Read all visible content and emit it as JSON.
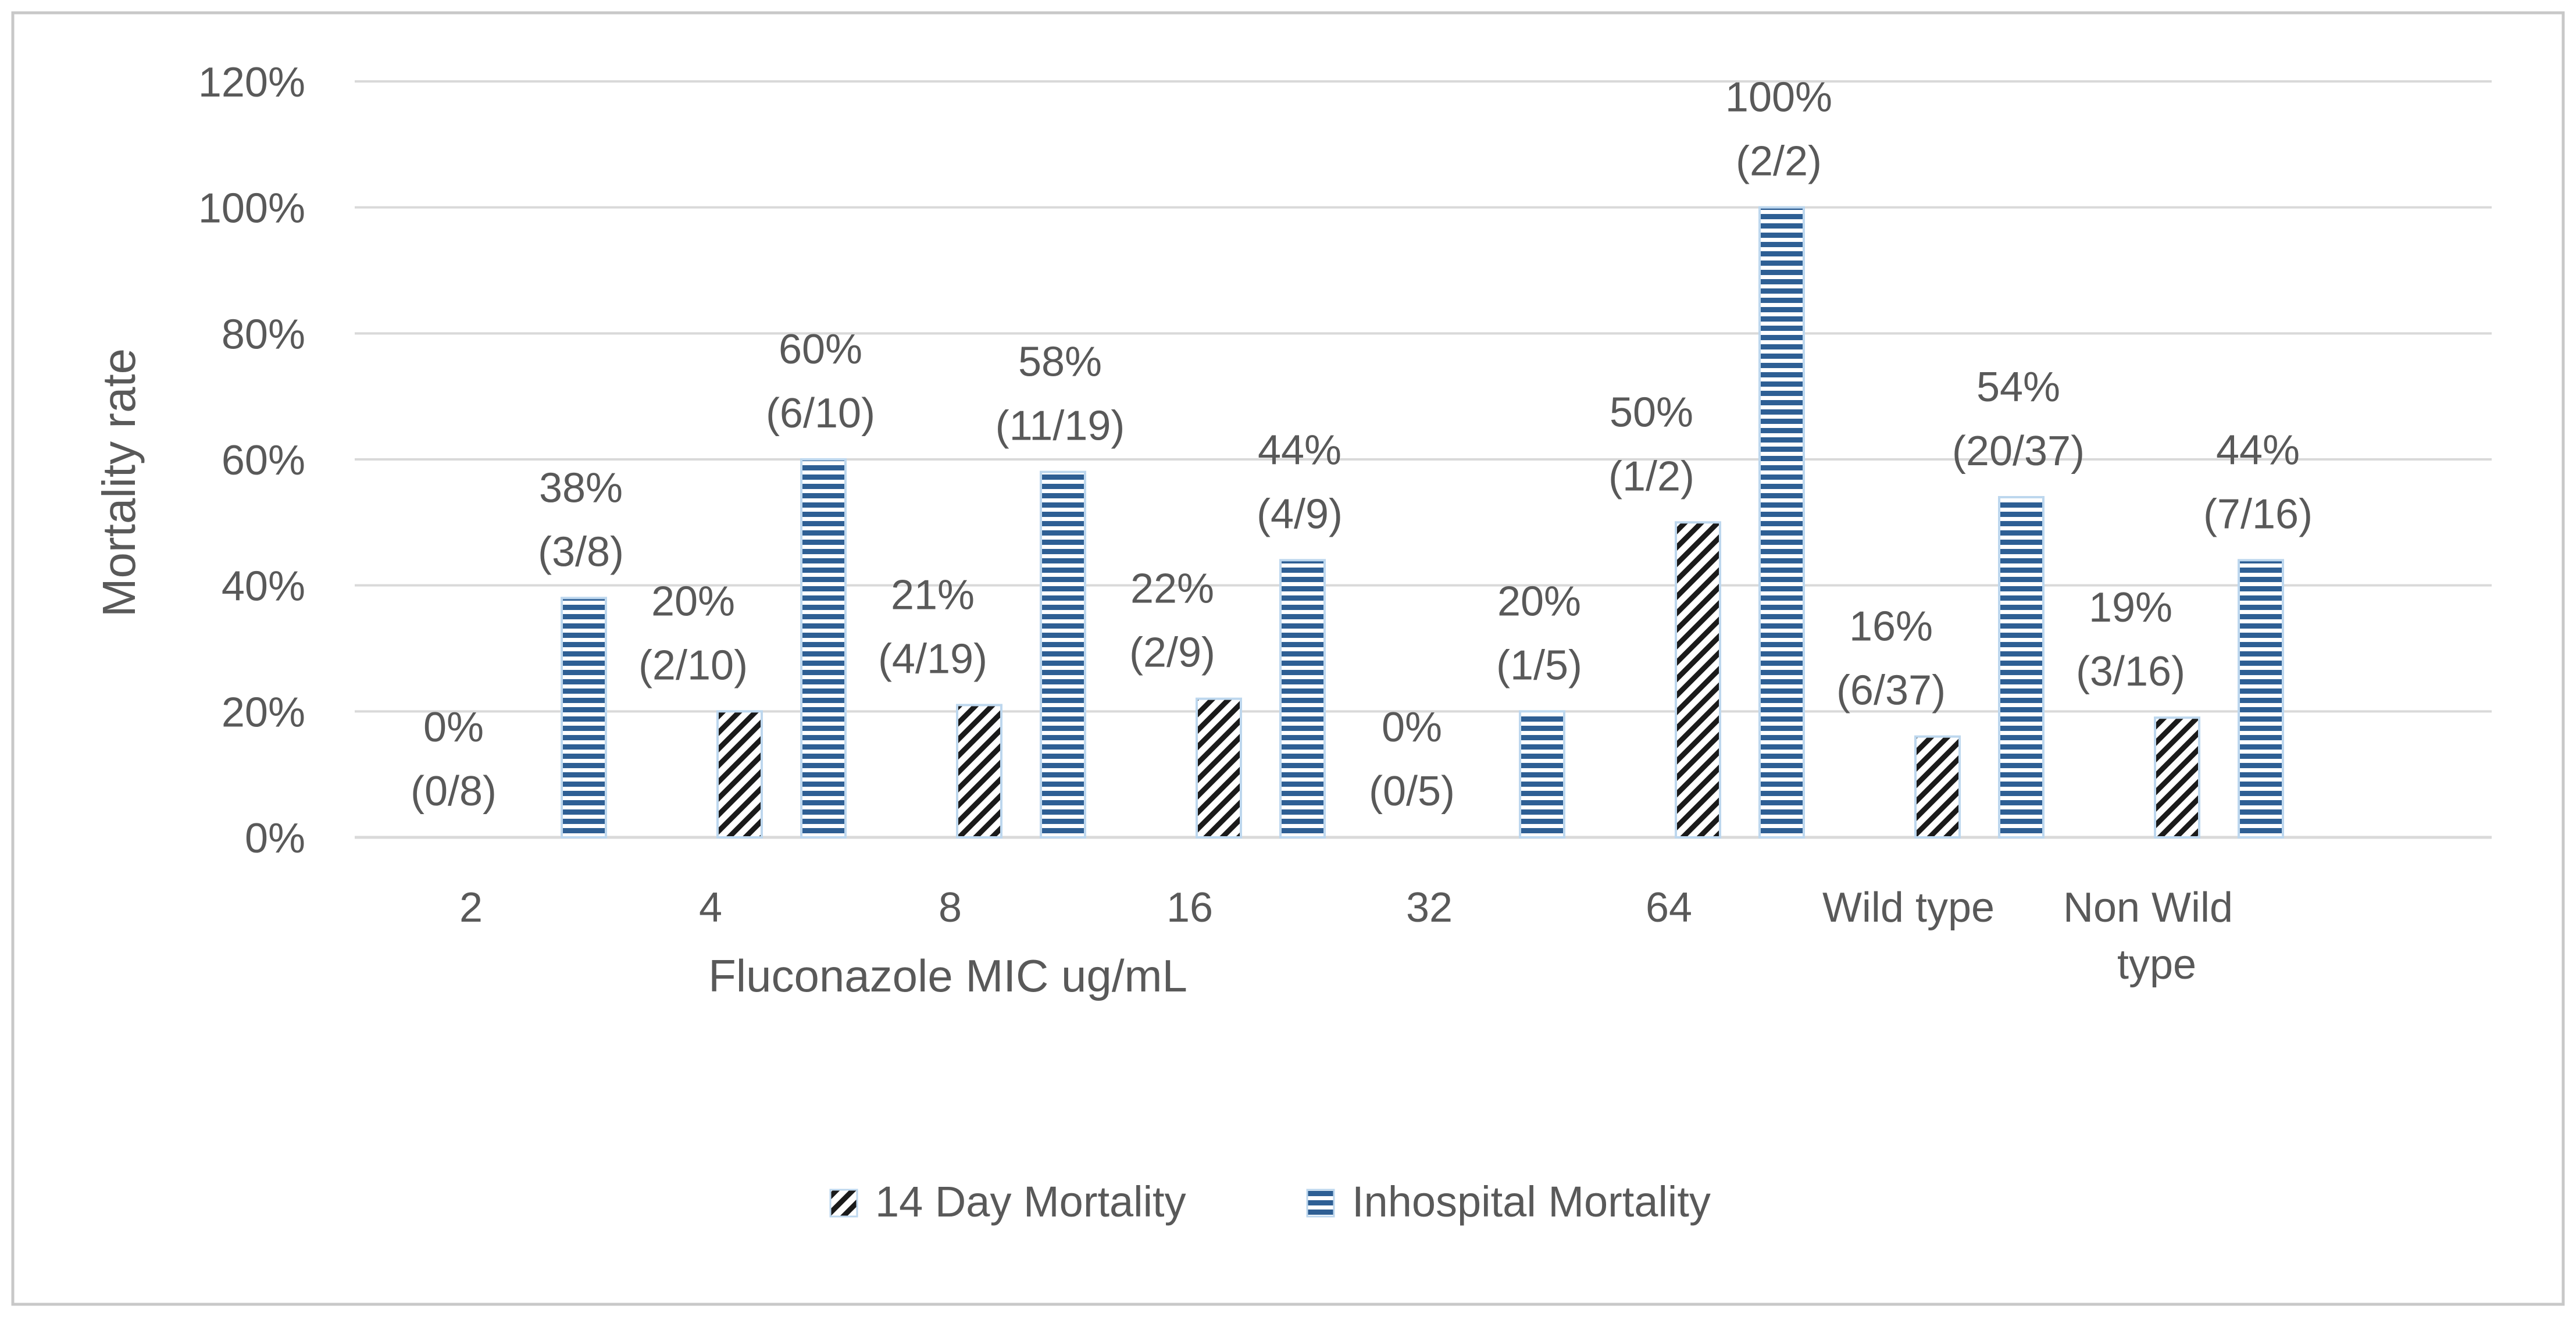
{
  "chart_data": {
    "type": "bar",
    "title": "",
    "xlabel": "Fluconazole MIC ug/mL",
    "ylabel": "Mortality rate",
    "ylim": [
      0,
      120
    ],
    "yticks": [
      "0%",
      "20%",
      "40%",
      "60%",
      "80%",
      "100%",
      "120%"
    ],
    "categories": [
      "2",
      "4",
      "8",
      "16",
      "32",
      "64",
      "Wild type",
      "Non Wild type"
    ],
    "category_lines": [
      [
        "2"
      ],
      [
        "4"
      ],
      [
        "8"
      ],
      [
        "16"
      ],
      [
        "32"
      ],
      [
        "64"
      ],
      [
        "Wild type"
      ],
      [
        "Non Wild",
        "type"
      ]
    ],
    "legend_position": "bottom",
    "grid": true,
    "series": [
      {
        "name": "14 Day Mortality",
        "values": [
          0,
          20,
          21,
          22,
          0,
          50,
          16,
          19
        ],
        "labels": [
          [
            "0%",
            "(0/8)"
          ],
          [
            "20%",
            "(2/10)"
          ],
          [
            "21%",
            "(4/19)"
          ],
          [
            "22%",
            "(2/9)"
          ],
          [
            "0%",
            "(0/5)"
          ],
          [
            "50%",
            "(1/2)"
          ],
          [
            "16%",
            "(6/37)"
          ],
          [
            "19%",
            "(3/16)"
          ]
        ],
        "pattern": "diagonal-hatch",
        "color": "#1a1a1a"
      },
      {
        "name": "Inhospital Mortality",
        "values": [
          38,
          60,
          58,
          44,
          20,
          100,
          54,
          44
        ],
        "labels": [
          [
            "38%",
            "(3/8)"
          ],
          [
            "60%",
            "(6/10)"
          ],
          [
            "58%",
            "(11/19)"
          ],
          [
            "44%",
            "(4/9)"
          ],
          [
            "20%",
            "(1/5)"
          ],
          [
            "100%",
            "(2/2)"
          ],
          [
            "54%",
            "(20/37)"
          ],
          [
            "44%",
            "(7/16)"
          ]
        ],
        "pattern": "horizontal-stripes",
        "color": "#2e5f94"
      }
    ],
    "colors": {
      "grid": "#d9d9d9",
      "text": "#595959",
      "border": "#c8c8c8",
      "bar_outline": "#bdd7ee"
    }
  }
}
